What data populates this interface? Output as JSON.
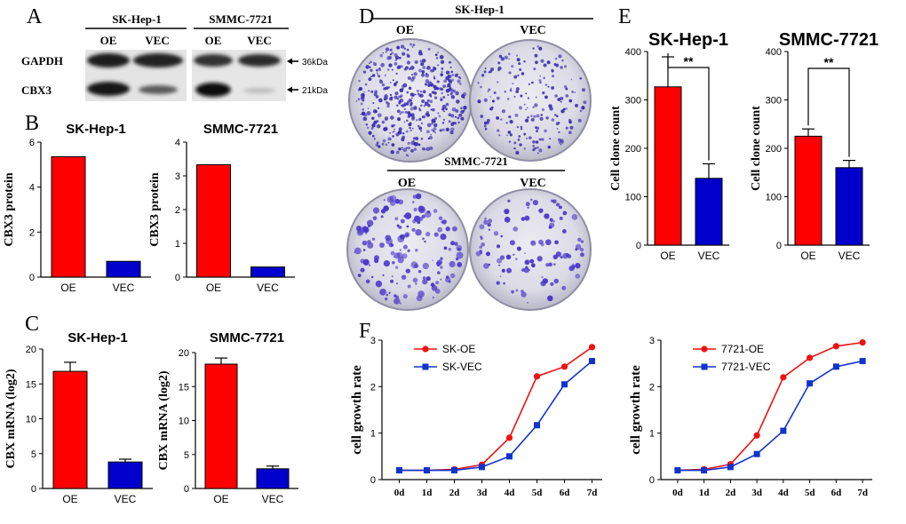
{
  "panel_labels": {
    "A": "A",
    "B": "B",
    "C": "C",
    "D": "D",
    "E": "E",
    "F": "F"
  },
  "western_blot": {
    "groups": [
      {
        "name": "SK-Hep-1",
        "lanes": [
          "OE",
          "VEC"
        ]
      },
      {
        "name": "SMMC-7721",
        "lanes": [
          "OE",
          "VEC"
        ]
      }
    ],
    "rows": [
      {
        "name": "GAPDH",
        "marker": "36kDa"
      },
      {
        "name": "CBX3",
        "marker": "21kDa"
      }
    ]
  },
  "colony_assay": {
    "top_title": "SK-Hep-1",
    "bottom_title": "SMMC-7721",
    "lanes": [
      "OE",
      "VEC"
    ]
  },
  "colors": {
    "oe": "#ff0000",
    "vec": "#0000cc",
    "line_oe": "#ee1111",
    "line_vec": "#1133cc"
  },
  "chart_data": [
    {
      "id": "b1",
      "type": "bar",
      "title": "SK-Hep-1",
      "ylabel": "CBX3 protein",
      "categories": [
        "OE",
        "VEC"
      ],
      "values": [
        5.35,
        0.7
      ],
      "errors": [
        0,
        0
      ],
      "ylim": [
        0,
        6
      ],
      "yticks": [
        0,
        2,
        4,
        6
      ]
    },
    {
      "id": "b2",
      "type": "bar",
      "title": "SMMC-7721",
      "ylabel": "CBX3 protein",
      "categories": [
        "OE",
        "VEC"
      ],
      "values": [
        3.33,
        0.3
      ],
      "errors": [
        0,
        0
      ],
      "ylim": [
        0,
        4
      ],
      "yticks": [
        0,
        1,
        2,
        3,
        4
      ]
    },
    {
      "id": "c1",
      "type": "bar",
      "title": "SK-Hep-1",
      "ylabel": "CBX mRNA (log2)",
      "categories": [
        "OE",
        "VEC"
      ],
      "values": [
        16.8,
        3.8
      ],
      "errors": [
        1.3,
        0.4
      ],
      "ylim": [
        0,
        20
      ],
      "yticks": [
        0,
        5,
        10,
        15,
        20
      ]
    },
    {
      "id": "c2",
      "type": "bar",
      "title": "SMMC-7721",
      "ylabel": "CBX mRNA (log2)",
      "categories": [
        "OE",
        "VEC"
      ],
      "values": [
        18.3,
        2.9
      ],
      "errors": [
        0.9,
        0.4
      ],
      "ylim": [
        0,
        20
      ],
      "yticks": [
        0,
        5,
        10,
        15,
        20
      ]
    },
    {
      "id": "e1",
      "type": "bar",
      "title": "SK-Hep-1",
      "ylabel": "Cell clone count",
      "categories": [
        "OE",
        "VEC"
      ],
      "values": [
        327,
        138
      ],
      "errors": [
        62,
        30
      ],
      "ylim": [
        0,
        400
      ],
      "yticks": [
        0,
        100,
        200,
        300,
        400
      ],
      "significance": "**"
    },
    {
      "id": "e2",
      "type": "bar",
      "title": "SMMC-7721",
      "ylabel": "Cell clone count",
      "categories": [
        "OE",
        "VEC"
      ],
      "values": [
        225,
        160
      ],
      "errors": [
        15,
        15
      ],
      "ylim": [
        0,
        400
      ],
      "yticks": [
        0,
        100,
        200,
        300,
        400
      ],
      "significance": "**"
    },
    {
      "id": "f1",
      "type": "line",
      "ylabel": "cell growth rate",
      "x": [
        "0d",
        "1d",
        "2d",
        "3d",
        "4d",
        "5d",
        "6d",
        "7d"
      ],
      "ylim": [
        0,
        3
      ],
      "yticks": [
        0,
        1,
        2,
        3
      ],
      "series": [
        {
          "name": "SK-OE",
          "values": [
            0.2,
            0.2,
            0.22,
            0.32,
            0.9,
            2.22,
            2.43,
            2.85
          ]
        },
        {
          "name": "SK-VEC",
          "values": [
            0.2,
            0.2,
            0.2,
            0.27,
            0.5,
            1.17,
            2.05,
            2.55
          ]
        }
      ]
    },
    {
      "id": "f2",
      "type": "line",
      "ylabel": "cell growth rate",
      "x": [
        "0d",
        "1d",
        "2d",
        "3d",
        "4d",
        "5d",
        "6d",
        "7d"
      ],
      "ylim": [
        0,
        3
      ],
      "yticks": [
        0,
        1,
        2,
        3
      ],
      "series": [
        {
          "name": "7721-OE",
          "values": [
            0.2,
            0.22,
            0.33,
            0.95,
            2.2,
            2.62,
            2.87,
            2.95
          ]
        },
        {
          "name": "7721-VEC",
          "values": [
            0.2,
            0.2,
            0.27,
            0.55,
            1.05,
            2.07,
            2.43,
            2.55
          ]
        }
      ]
    }
  ]
}
